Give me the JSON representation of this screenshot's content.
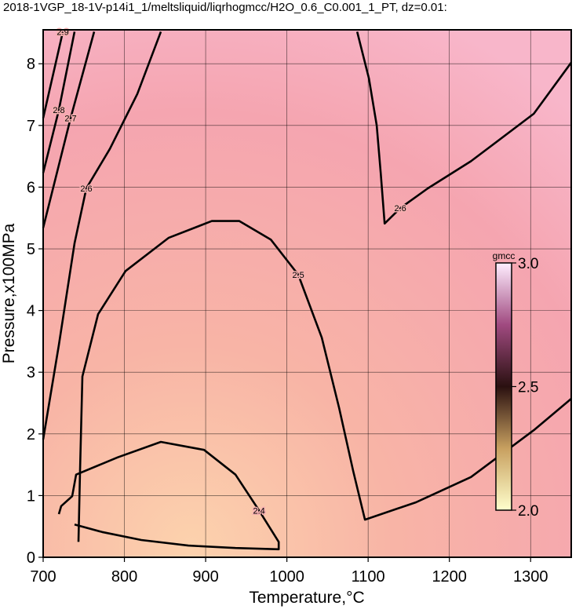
{
  "chart_data": {
    "type": "contour",
    "title": "2018-1VGP_18-1V-p14i1_1/meltsliquid/liqrhogmcc/H2O_0.6_C0.001_1_PT, dz=0.01:",
    "x_label": "Temperature,°C",
    "y_label": "Pressure,x100MPa",
    "xlim": [
      700,
      1350
    ],
    "ylim": [
      0,
      8.55
    ],
    "xticks": [
      700,
      800,
      900,
      1000,
      1100,
      1200,
      1300
    ],
    "yticks": [
      0,
      1,
      2,
      3,
      4,
      5,
      6,
      7,
      8
    ],
    "grid": true,
    "line_color": "#000000",
    "series": [
      {
        "name": "2.4",
        "x": [
          719.3,
          722.2,
          735.7,
          740.6,
          791.8,
          844.9,
          898.1,
          936.7,
          965.7,
          989.9,
          989.9,
          936.7,
          878.7,
          820.8,
          772.5,
          738.6
        ],
        "values": [
          0.7,
          0.83,
          0.99,
          1.34,
          1.62,
          1.87,
          1.74,
          1.34,
          0.76,
          0.25,
          0.13,
          0.15,
          0.19,
          0.28,
          0.41,
          0.53
        ]
      },
      {
        "name": "2.5",
        "x": [
          743.5,
          745.4,
          748.3,
          767.6,
          801.4,
          854.6,
          907.7,
          941.5,
          980.2,
          1014,
          1043,
          1064.3,
          1081.6,
          1096.1,
          1158.9,
          1226.6,
          1303.9,
          1350
        ],
        "values": [
          0.25,
          1.4,
          2.93,
          3.94,
          4.64,
          5.18,
          5.45,
          5.45,
          5.15,
          4.58,
          3.56,
          2.42,
          1.4,
          0.61,
          0.89,
          1.3,
          2.06,
          2.57
        ]
      },
      {
        "name": "2.6",
        "x": [
          700,
          719.3,
          738.6,
          753.1,
          782.1,
          815.9,
          844.9
        ],
        "values": [
          1.91,
          3.44,
          5.09,
          5.98,
          6.62,
          7.51,
          8.52
        ]
      },
      {
        "name": "2.6",
        "x": [
          1086.5,
          1101,
          1110.6,
          1115.5,
          1120.3,
          1139.6,
          1173.4,
          1226.6,
          1303.9,
          1350
        ],
        "values": [
          8.52,
          7.76,
          7.0,
          6.23,
          5.41,
          5.66,
          5.98,
          6.42,
          7.19,
          8.02
        ]
      },
      {
        "name": "2.7",
        "x": [
          700,
          733.8,
          762.8
        ],
        "values": [
          5.34,
          7.12,
          8.52
        ]
      },
      {
        "name": "2.8",
        "x": [
          700,
          719.3,
          738.6
        ],
        "values": [
          6.23,
          7.25,
          8.52
        ]
      },
      {
        "name": "2.9",
        "x": [
          700,
          724.2
        ],
        "values": [
          7.12,
          8.52
        ]
      }
    ],
    "colorbar": {
      "label": "gmcc",
      "lim": [
        2,
        3
      ],
      "ticks": [
        {
          "value": 3,
          "label": "3.0"
        },
        {
          "value": 2.5,
          "label": "2.5"
        },
        {
          "value": 2,
          "label": "2.0"
        }
      ],
      "colors": [
        "#ffffcc",
        "#c8a060",
        "#2a1010",
        "#a04a80",
        "#ffeeff"
      ]
    }
  }
}
